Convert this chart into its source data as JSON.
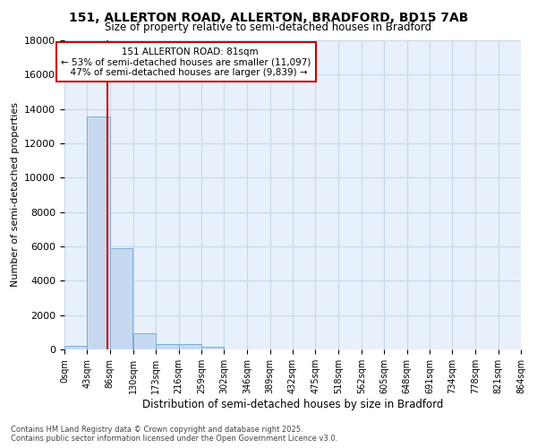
{
  "title1": "151, ALLERTON ROAD, ALLERTON, BRADFORD, BD15 7AB",
  "title2": "Size of property relative to semi-detached houses in Bradford",
  "xlabel": "Distribution of semi-detached houses by size in Bradford",
  "ylabel": "Number of semi-detached properties",
  "annotation_title": "151 ALLERTON ROAD: 81sqm",
  "annotation_line2": "← 53% of semi-detached houses are smaller (11,097)",
  "annotation_line3": "47% of semi-detached houses are larger (9,839) →",
  "property_size": 81,
  "footer1": "Contains HM Land Registry data © Crown copyright and database right 2025.",
  "footer2": "Contains public sector information licensed under the Open Government Licence v3.0.",
  "bin_edges": [
    0,
    43,
    86,
    130,
    173,
    216,
    259,
    302,
    346,
    389,
    432,
    475,
    518,
    562,
    605,
    648,
    691,
    734,
    778,
    821,
    864
  ],
  "bin_labels": [
    "0sqm",
    "43sqm",
    "86sqm",
    "130sqm",
    "173sqm",
    "216sqm",
    "259sqm",
    "302sqm",
    "346sqm",
    "389sqm",
    "432sqm",
    "475sqm",
    "518sqm",
    "562sqm",
    "605sqm",
    "648sqm",
    "691sqm",
    "734sqm",
    "778sqm",
    "821sqm",
    "864sqm"
  ],
  "bar_heights": [
    200,
    13550,
    5900,
    950,
    320,
    300,
    150,
    0,
    0,
    0,
    0,
    0,
    0,
    0,
    0,
    0,
    0,
    0,
    0,
    0
  ],
  "bar_color": "#c6d9f0",
  "bar_edge_color": "#7bafd4",
  "vline_x": 81,
  "vline_color": "#cc0000",
  "annotation_box_color": "#cc0000",
  "grid_color": "#c8d8e8",
  "background_color": "#ffffff",
  "plot_bg_color": "#e8f0fb",
  "ylim": [
    0,
    18000
  ],
  "yticks": [
    0,
    2000,
    4000,
    6000,
    8000,
    10000,
    12000,
    14000,
    16000,
    18000
  ]
}
